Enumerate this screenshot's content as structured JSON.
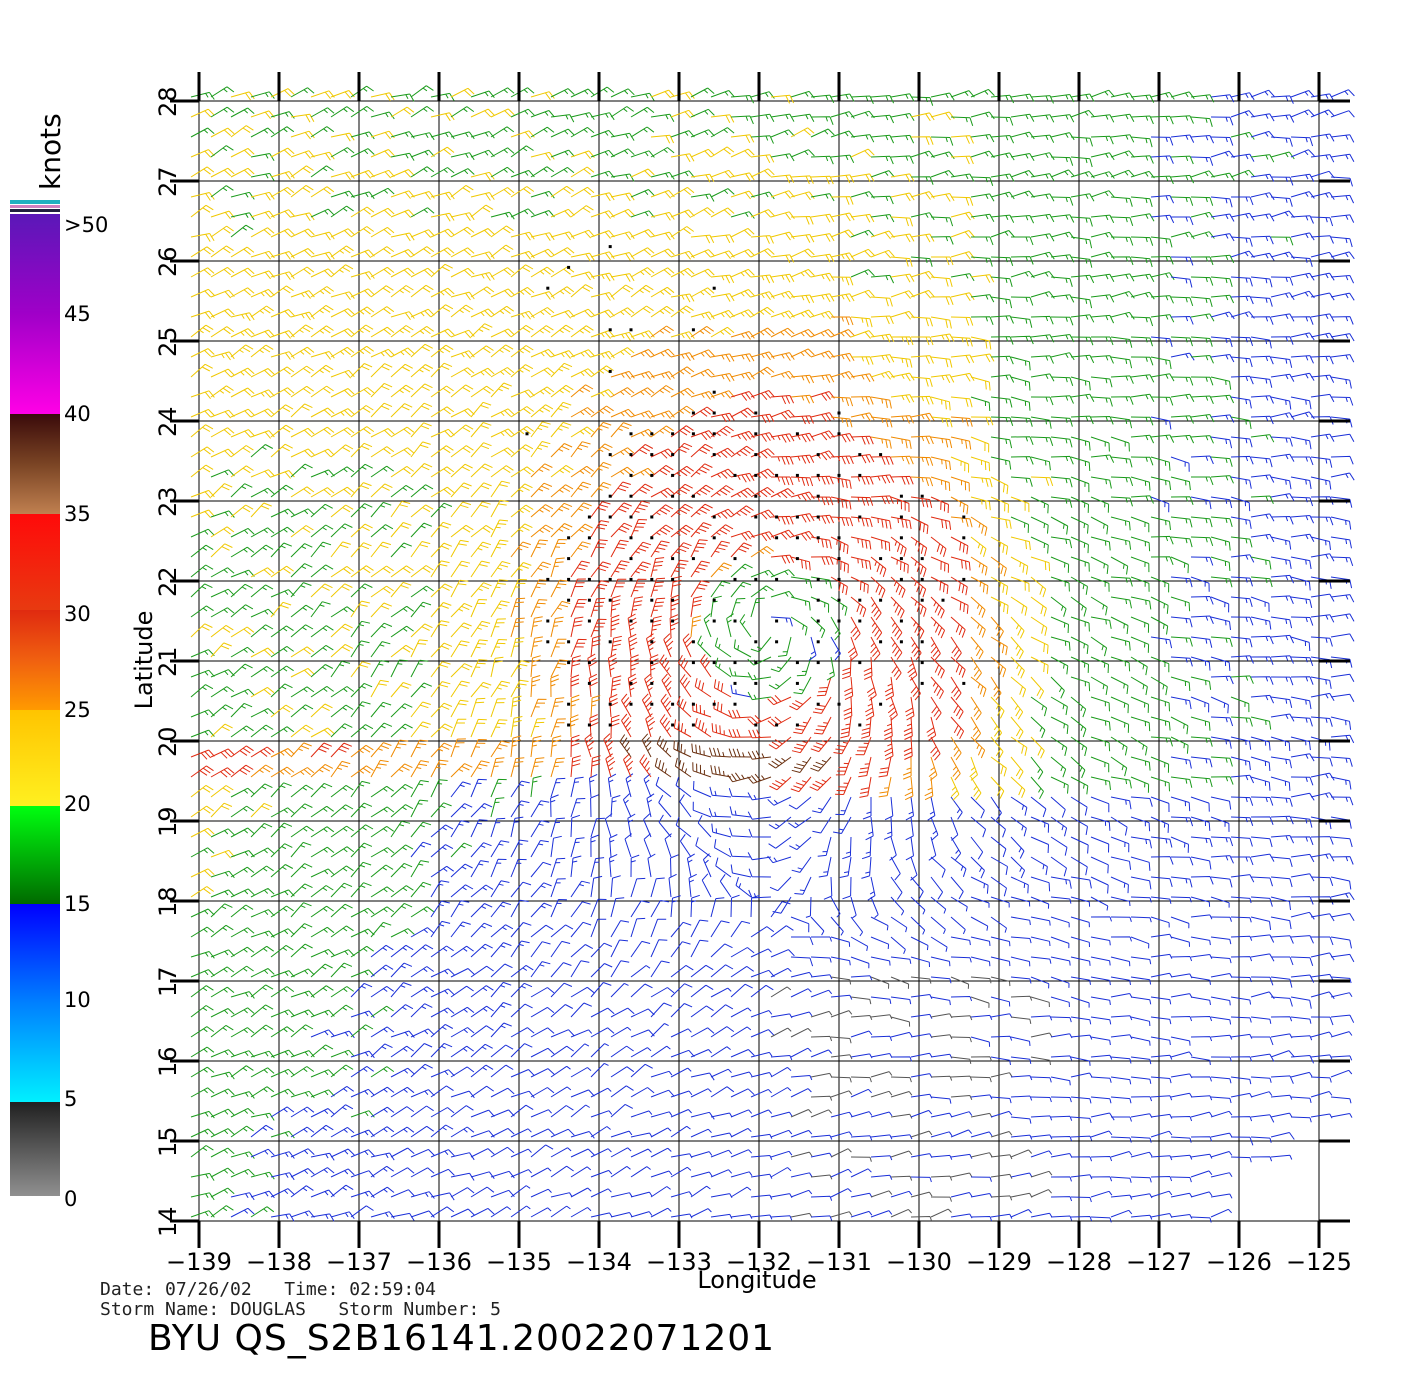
{
  "colorbar": {
    "unit": "knots",
    "tick_labels": [
      ">50",
      "45",
      "40",
      "35",
      "30",
      "25",
      "20",
      "15",
      "10",
      "5",
      "0"
    ],
    "speed_classes": [
      {
        "min": 0,
        "max": 5,
        "color": "#555555"
      },
      {
        "min": 5,
        "max": 15,
        "color": "#1a2fd8"
      },
      {
        "min": 15,
        "max": 20,
        "color": "#1a9a1a"
      },
      {
        "min": 20,
        "max": 25,
        "color": "#f0c800"
      },
      {
        "min": 25,
        "max": 30,
        "color": "#f08a00"
      },
      {
        "min": 30,
        "max": 35,
        "color": "#e02a10"
      },
      {
        "min": 35,
        "max": 60,
        "color": "#6a3010"
      }
    ]
  },
  "map": {
    "x_axis_label": "Longitude",
    "y_axis_label": "Latitude",
    "lon_range": [
      -139,
      -125
    ],
    "lat_range": [
      14,
      28
    ],
    "lon_ticks": [
      "−139",
      "−138",
      "−137",
      "−136",
      "−135",
      "−134",
      "−133",
      "−132",
      "−131",
      "−130",
      "−129",
      "−128",
      "−127",
      "−126",
      "−125"
    ],
    "lat_ticks": [
      "14",
      "15",
      "16",
      "17",
      "18",
      "19",
      "20",
      "21",
      "22",
      "23",
      "24",
      "25",
      "26",
      "27",
      "28"
    ],
    "grid": true,
    "storm_center": {
      "lon": -131.9,
      "lat": 21.4
    }
  },
  "info": {
    "date_line": "Date: 07/26/02   Time: 02:59:04",
    "storm_line": "Storm Name: DOUGLAS   Storm Number: 5",
    "product_id": "BYU QS_S2B16141.20022071201"
  }
}
